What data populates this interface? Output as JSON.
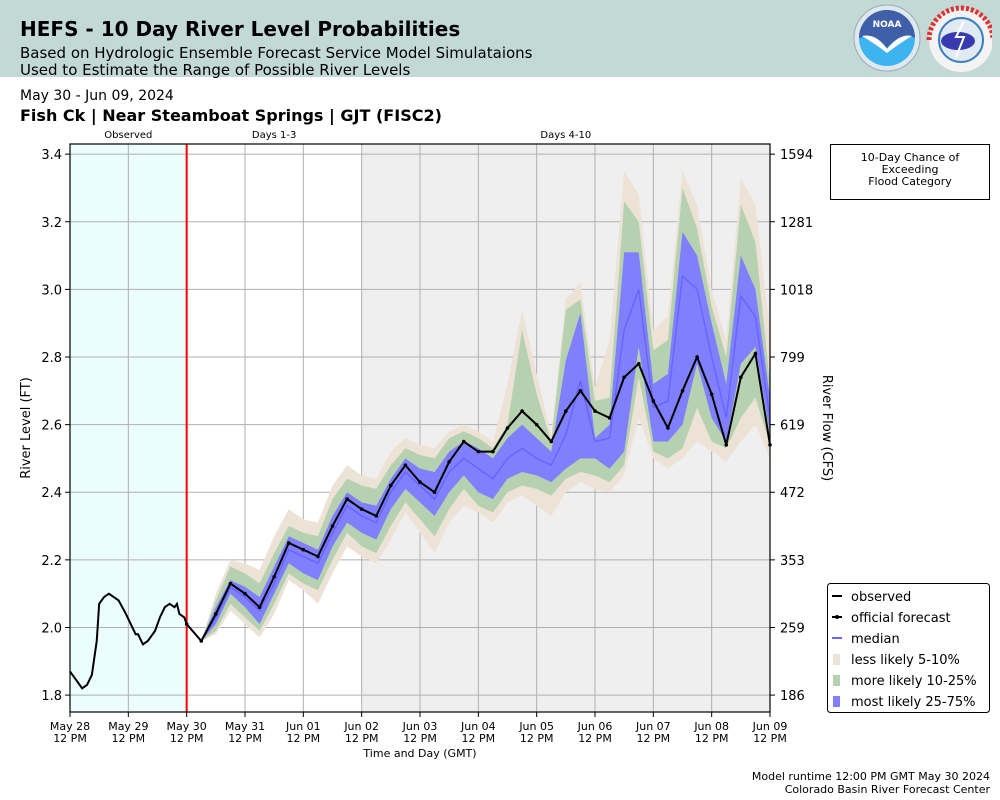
{
  "header": {
    "title": "HEFS - 10 Day River Level Probabilities",
    "subtitle_line1": "Based on Hydrologic Ensemble Forecast Service Model Simulataions",
    "subtitle_line2": "Used to Estimate the Range of Possible River Levels",
    "logos": [
      "NOAA",
      "NATIONAL WEATHER SERVICE"
    ]
  },
  "date_range": "May 30 - Jun 09, 2024",
  "location": "Fish Ck | Near Steamboat Springs | GJT (FISC2)",
  "flood_box": {
    "line1": "10-Day Chance of",
    "line2": "Exceeding",
    "line3": "Flood Category"
  },
  "footer": {
    "runtime": "Model runtime 12:00 PM GMT May 30 2024",
    "center": "Colorado Basin River Forecast Center"
  },
  "chart_data": {
    "type": "line",
    "xlabel": "Time and Day (GMT)",
    "ylabel": "River Level (FT)",
    "y2label": "River Flow (CFS)",
    "xlim": [
      "2024-05-28T12:00Z",
      "2024-06-09T12:00Z"
    ],
    "ylim": [
      1.75,
      3.43
    ],
    "grid": true,
    "legend_position": "bottom-right",
    "sections": [
      {
        "label": "Observed",
        "start": "2024-05-28T12:00Z",
        "end": "2024-05-30T12:00Z",
        "color": "#ebfdfd"
      },
      {
        "label": "Days 1-3",
        "start": "2024-05-30T12:00Z",
        "end": "2024-06-02T12:00Z",
        "color": "#ffffff"
      },
      {
        "label": "Days 4-10",
        "start": "2024-06-02T12:00Z",
        "end": "2024-06-09T12:00Z",
        "color": "#efefef"
      }
    ],
    "forecast_start_line": "2024-05-30T12:00Z",
    "x_ticks": [
      {
        "day": "May 28",
        "time": "12 PM",
        "t": "2024-05-28T12:00Z"
      },
      {
        "day": "May 29",
        "time": "12 PM",
        "t": "2024-05-29T12:00Z"
      },
      {
        "day": "May 30",
        "time": "12 PM",
        "t": "2024-05-30T12:00Z"
      },
      {
        "day": "May 31",
        "time": "12 PM",
        "t": "2024-05-31T12:00Z"
      },
      {
        "day": "Jun 01",
        "time": "12 PM",
        "t": "2024-06-01T12:00Z"
      },
      {
        "day": "Jun 02",
        "time": "12 PM",
        "t": "2024-06-02T12:00Z"
      },
      {
        "day": "Jun 03",
        "time": "12 PM",
        "t": "2024-06-03T12:00Z"
      },
      {
        "day": "Jun 04",
        "time": "12 PM",
        "t": "2024-06-04T12:00Z"
      },
      {
        "day": "Jun 05",
        "time": "12 PM",
        "t": "2024-06-05T12:00Z"
      },
      {
        "day": "Jun 06",
        "time": "12 PM",
        "t": "2024-06-06T12:00Z"
      },
      {
        "day": "Jun 07",
        "time": "12 PM",
        "t": "2024-06-07T12:00Z"
      },
      {
        "day": "Jun 08",
        "time": "12 PM",
        "t": "2024-06-08T12:00Z"
      },
      {
        "day": "Jun 09",
        "time": "12 PM",
        "t": "2024-06-09T12:00Z"
      }
    ],
    "y_ticks": [
      1.8,
      2.0,
      2.2,
      2.4,
      2.6,
      2.8,
      3.0,
      3.2,
      3.4
    ],
    "y_tick_labels": [
      "1.8",
      "2.0",
      "2.2",
      "2.4",
      "2.6",
      "2.8",
      "3.0",
      "3.2",
      "3.4"
    ],
    "y2_tick_labels": [
      "186",
      "259",
      "353",
      "472",
      "619",
      "799",
      "1018",
      "1281",
      "1594"
    ],
    "colors": {
      "observed": "#000000",
      "official_forecast": "#000000",
      "median": "#6666ff",
      "less_likely": "#ece3d6",
      "more_likely": "#b5d1b0",
      "most_likely": "#8080ff",
      "forecast_line": "#ff0000"
    },
    "legend": [
      {
        "key": "observed",
        "label": "observed"
      },
      {
        "key": "official_forecast",
        "label": "official forecast"
      },
      {
        "key": "median",
        "label": "median"
      },
      {
        "key": "less_likely",
        "label": "less likely 5-10%"
      },
      {
        "key": "more_likely",
        "label": "more likely 10-25%"
      },
      {
        "key": "most_likely",
        "label": "most likely 25-75%"
      }
    ],
    "observed": [
      [
        "2024-05-28T12:00Z",
        1.87
      ],
      [
        "2024-05-28T17:00Z",
        1.82
      ],
      [
        "2024-05-28T19:00Z",
        1.83
      ],
      [
        "2024-05-28T21:00Z",
        1.86
      ],
      [
        "2024-05-28T23:00Z",
        1.96
      ],
      [
        "2024-05-29T00:00Z",
        2.07
      ],
      [
        "2024-05-29T02:00Z",
        2.09
      ],
      [
        "2024-05-29T04:00Z",
        2.1
      ],
      [
        "2024-05-29T06:00Z",
        2.09
      ],
      [
        "2024-05-29T08:00Z",
        2.08
      ],
      [
        "2024-05-29T11:00Z",
        2.04
      ],
      [
        "2024-05-29T13:00Z",
        2.01
      ],
      [
        "2024-05-29T15:00Z",
        1.98
      ],
      [
        "2024-05-29T16:00Z",
        1.98
      ],
      [
        "2024-05-29T18:00Z",
        1.95
      ],
      [
        "2024-05-29T20:00Z",
        1.96
      ],
      [
        "2024-05-29T22:00Z",
        1.98
      ],
      [
        "2024-05-29T23:00Z",
        1.99
      ],
      [
        "2024-05-30T01:00Z",
        2.03
      ],
      [
        "2024-05-30T03:00Z",
        2.06
      ],
      [
        "2024-05-30T05:00Z",
        2.07
      ],
      [
        "2024-05-30T07:00Z",
        2.06
      ],
      [
        "2024-05-30T08:00Z",
        2.07
      ],
      [
        "2024-05-30T09:00Z",
        2.04
      ],
      [
        "2024-05-30T11:00Z",
        2.03
      ],
      [
        "2024-05-30T12:00Z",
        2.01
      ]
    ],
    "forecast_start": "2024-05-30T12:00Z",
    "forecast_step_hours": 6,
    "official_forecast": [
      2.01,
      1.96,
      2.04,
      2.13,
      2.1,
      2.06,
      2.15,
      2.25,
      2.23,
      2.21,
      2.3,
      2.38,
      2.35,
      2.33,
      2.42,
      2.48,
      2.43,
      2.4,
      2.49,
      2.55,
      2.52,
      2.52,
      2.59,
      2.64,
      2.6,
      2.55,
      2.64,
      2.7,
      2.64,
      2.62,
      2.74,
      2.78,
      2.67,
      2.59,
      2.7,
      2.8,
      2.69,
      2.54,
      2.74,
      2.81,
      2.54
    ],
    "median": [
      2.01,
      1.96,
      2.03,
      2.12,
      2.09,
      2.05,
      2.13,
      2.23,
      2.21,
      2.19,
      2.28,
      2.36,
      2.33,
      2.31,
      2.4,
      2.46,
      2.42,
      2.38,
      2.46,
      2.5,
      2.47,
      2.44,
      2.5,
      2.53,
      2.5,
      2.48,
      2.57,
      2.73,
      2.55,
      2.56,
      2.88,
      3.0,
      2.65,
      2.67,
      3.04,
      3.0,
      2.8,
      2.62,
      2.98,
      2.92,
      2.62
    ],
    "p05": [
      2.01,
      1.96,
      1.98,
      2.05,
      2.01,
      1.97,
      2.04,
      2.14,
      2.11,
      2.07,
      2.16,
      2.24,
      2.21,
      2.19,
      2.26,
      2.34,
      2.28,
      2.22,
      2.31,
      2.36,
      2.34,
      2.31,
      2.37,
      2.39,
      2.36,
      2.33,
      2.4,
      2.43,
      2.41,
      2.4,
      2.45,
      2.62,
      2.5,
      2.47,
      2.5,
      2.55,
      2.52,
      2.49,
      2.55,
      2.6,
      2.5
    ],
    "p10": [
      2.01,
      1.96,
      1.99,
      2.07,
      2.03,
      1.99,
      2.07,
      2.16,
      2.13,
      2.11,
      2.2,
      2.28,
      2.24,
      2.22,
      2.3,
      2.37,
      2.32,
      2.27,
      2.35,
      2.41,
      2.36,
      2.34,
      2.4,
      2.42,
      2.41,
      2.39,
      2.44,
      2.46,
      2.45,
      2.43,
      2.48,
      2.74,
      2.52,
      2.5,
      2.53,
      2.65,
      2.55,
      2.53,
      2.62,
      2.68,
      2.54
    ],
    "p25": [
      2.01,
      1.96,
      2.01,
      2.1,
      2.06,
      2.01,
      2.1,
      2.19,
      2.16,
      2.14,
      2.24,
      2.31,
      2.28,
      2.26,
      2.35,
      2.41,
      2.37,
      2.33,
      2.4,
      2.45,
      2.4,
      2.38,
      2.44,
      2.46,
      2.45,
      2.43,
      2.47,
      2.5,
      2.5,
      2.47,
      2.52,
      2.83,
      2.55,
      2.55,
      2.6,
      2.78,
      2.62,
      2.55,
      2.78,
      2.83,
      2.57
    ],
    "p75": [
      2.01,
      1.96,
      2.06,
      2.14,
      2.12,
      2.09,
      2.18,
      2.27,
      2.25,
      2.23,
      2.33,
      2.4,
      2.37,
      2.36,
      2.44,
      2.5,
      2.47,
      2.46,
      2.52,
      2.55,
      2.53,
      2.5,
      2.56,
      2.6,
      2.56,
      2.52,
      2.79,
      2.93,
      2.56,
      2.6,
      3.11,
      3.11,
      2.72,
      2.75,
      3.17,
      3.1,
      2.9,
      2.72,
      3.1,
      3.0,
      2.68
    ],
    "p90": [
      2.01,
      1.96,
      2.08,
      2.18,
      2.16,
      2.13,
      2.22,
      2.3,
      2.28,
      2.27,
      2.38,
      2.44,
      2.42,
      2.41,
      2.48,
      2.53,
      2.51,
      2.5,
      2.56,
      2.58,
      2.56,
      2.53,
      2.6,
      2.88,
      2.69,
      2.55,
      2.94,
      2.97,
      2.67,
      2.68,
      3.26,
      3.2,
      2.82,
      2.85,
      3.3,
      3.18,
      2.95,
      2.8,
      3.25,
      3.14,
      2.72
    ],
    "p95": [
      2.01,
      1.96,
      2.1,
      2.2,
      2.19,
      2.17,
      2.27,
      2.35,
      2.32,
      2.31,
      2.42,
      2.48,
      2.45,
      2.44,
      2.52,
      2.56,
      2.54,
      2.53,
      2.58,
      2.6,
      2.58,
      2.55,
      2.72,
      2.94,
      2.75,
      2.57,
      2.97,
      3.02,
      2.71,
      2.85,
      3.35,
      3.28,
      2.88,
      2.92,
      3.35,
      3.25,
      3.0,
      2.85,
      3.33,
      3.25,
      2.88
    ]
  }
}
